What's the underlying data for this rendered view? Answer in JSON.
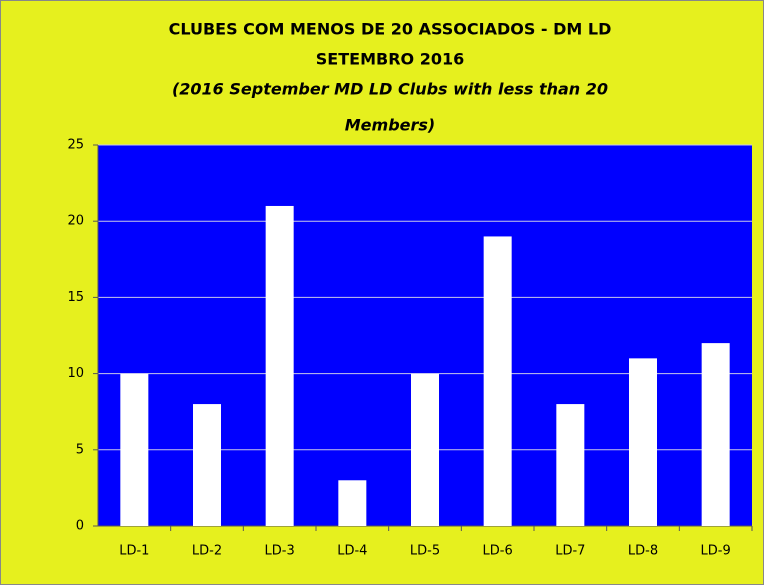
{
  "chart_data": {
    "type": "bar",
    "title": [
      "CLUBES COM MENOS DE 20 ASSOCIADOS - DM LD",
      "SETEMBRO 2016"
    ],
    "subtitle": [
      "(2016 September  MD LD  Clubs with less than 20",
      "Members)"
    ],
    "categories": [
      "LD-1",
      "LD-2",
      "LD-3",
      "LD-4",
      "LD-5",
      "LD-6",
      "LD-7",
      "LD-8",
      "LD-9"
    ],
    "values": [
      10,
      8,
      21,
      3,
      10,
      19,
      8,
      11,
      12
    ],
    "color": "#ffffff",
    "plot_color": "#0000ff",
    "ylim": [
      0,
      25
    ],
    "yticks": [
      0,
      5,
      10,
      15,
      20,
      25
    ],
    "grid": true
  }
}
